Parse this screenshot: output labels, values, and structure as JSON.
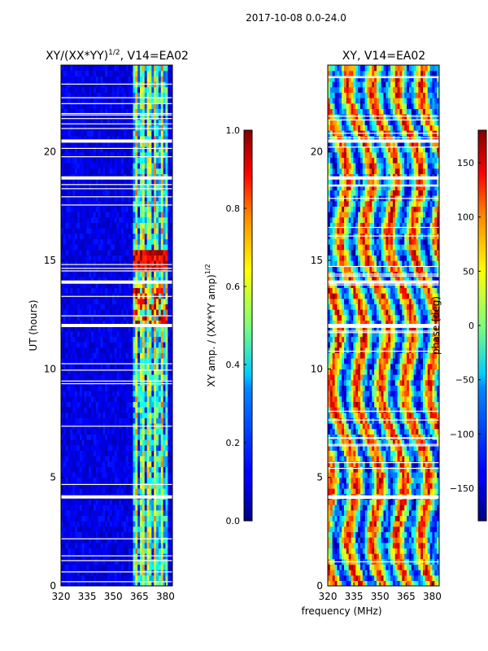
{
  "figure": {
    "suptitle": "2017-10-08 0.0-24.0"
  },
  "chart_data": [
    {
      "type": "heatmap",
      "title_base": "XY/(XX*YY)",
      "title_sup": "1/2",
      "title_tail": ", V14=EA02",
      "xlabel": "",
      "ylabel": "UT (hours)",
      "x_ticks": [
        320,
        335,
        350,
        365,
        380
      ],
      "y_ticks": [
        0,
        5,
        10,
        15,
        20
      ],
      "xlim": [
        320,
        384
      ],
      "ylim": [
        0,
        24
      ],
      "value_range": [
        0.0,
        1.0
      ],
      "colormap": "jet",
      "flagged_ut_bands": [
        4.1,
        12.0,
        14.0,
        18.8,
        20.5
      ],
      "strong_signal_mhz_range": [
        361,
        381
      ],
      "peak_ut_range": [
        14.5,
        15.5
      ],
      "colorbar": {
        "label_base": "XY amp. / (XX*YY amp)",
        "label_sup": "1/2",
        "ticks": [
          0.0,
          0.2,
          0.4,
          0.6,
          0.8,
          1.0
        ],
        "tick_labels": [
          "0.0",
          "0.2",
          "0.4",
          "0.6",
          "0.8",
          "1.0"
        ]
      }
    },
    {
      "type": "heatmap",
      "title": "XY, V14=EA02",
      "xlabel": "frequency (MHz)",
      "ylabel": "",
      "x_ticks": [
        320,
        335,
        350,
        365,
        380
      ],
      "y_ticks": [
        0,
        5,
        10,
        15,
        20
      ],
      "xlim": [
        320,
        384
      ],
      "ylim": [
        0,
        24
      ],
      "value_range": [
        -180,
        180
      ],
      "colormap": "jet",
      "flagged_ut_bands": [
        4.1,
        12.0,
        14.0,
        18.8,
        20.5
      ],
      "colorbar": {
        "label": "phase (deg)",
        "ticks": [
          -150,
          -100,
          -50,
          0,
          50,
          100,
          150
        ],
        "tick_labels": [
          "−150",
          "−100",
          "−50",
          "0",
          "50",
          "100",
          "150"
        ]
      }
    }
  ]
}
